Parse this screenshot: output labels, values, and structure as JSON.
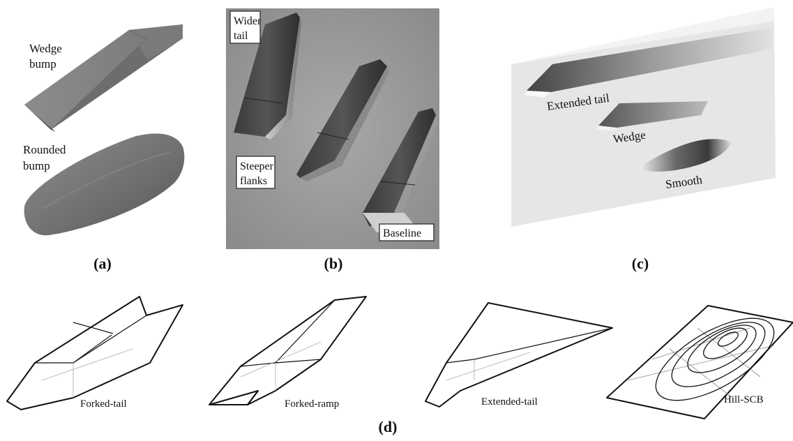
{
  "panel_a": {
    "caption": "(a)",
    "wedge_label": [
      "Wedge",
      "bump"
    ],
    "rounded_label": [
      "Rounded",
      "bump"
    ]
  },
  "panel_b": {
    "caption": "(b)",
    "wider_tail_label": [
      "Wider",
      "tail"
    ],
    "steeper_flanks_label": [
      "Steeper",
      "flanks"
    ],
    "baseline_label": "Baseline"
  },
  "panel_c": {
    "caption": "(c)",
    "extended_tail_label": "Extended tail",
    "wedge_label": "Wedge",
    "smooth_label": "Smooth"
  },
  "panel_d": {
    "caption": "(d)",
    "forked_tail_label": "Forked-tail",
    "forked_ramp_label": "Forked-ramp",
    "extended_tail_label": "Extended-tail",
    "hill_scb_label": "Hill-SCB"
  }
}
